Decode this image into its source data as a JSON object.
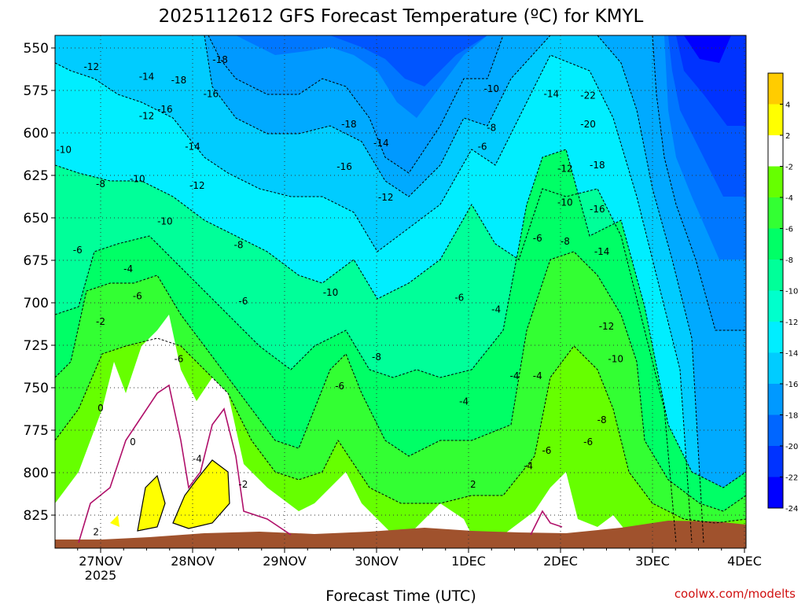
{
  "chart_data": {
    "type": "time-height contour",
    "title": "2025112612 GFS Forecast Temperature (ºC) for KMYL",
    "xlabel": "Forecast Time (UTC)",
    "ylabel": "Pressure (hPa)",
    "credit": "coolwx.com/modelts",
    "y_ticks": [
      "550",
      "575",
      "600",
      "625",
      "650",
      "675",
      "700",
      "725",
      "750",
      "775",
      "800",
      "825"
    ],
    "x_ticks": [
      "27NOV",
      "28NOV",
      "29NOV",
      "30NOV",
      "1DEC",
      "2DEC",
      "3DEC",
      "4DEC"
    ],
    "x_sublabel": "2025",
    "colorbar": {
      "labels": [
        "4",
        "2",
        "-2",
        "-4",
        "-6",
        "-8",
        "-10",
        "-12",
        "-14",
        "-16",
        "-18",
        "-20",
        "-22",
        "-24"
      ],
      "colors": [
        "#0000ff",
        "#0033ff",
        "#0066ff",
        "#0099ff",
        "#00ccff",
        "#00eeff",
        "#00ffcc",
        "#00ff99",
        "#00ff66",
        "#33ff33",
        "#66ff00",
        "#ffffff",
        "#ffff00",
        "#ffcc00"
      ]
    },
    "temperature_profiles": [
      {
        "time": "27NOV",
        "values_by_pressure": {
          "550": -12,
          "600": -10,
          "650": -6,
          "700": -3,
          "750": 0,
          "800": 1,
          "825": 2
        }
      },
      {
        "time": "28NOV",
        "values_by_pressure": {
          "550": -14,
          "600": -11,
          "650": -8,
          "700": -5,
          "750": -1,
          "800": 2,
          "825": 3
        }
      },
      {
        "time": "29NOV",
        "values_by_pressure": {
          "550": -17,
          "600": -14,
          "650": -10,
          "700": -7,
          "750": -5,
          "800": -3,
          "825": -1
        }
      },
      {
        "time": "30NOV",
        "values_by_pressure": {
          "550": -18,
          "600": -16,
          "650": -11,
          "700": -9,
          "750": -7,
          "800": -5,
          "825": -2
        }
      },
      {
        "time": "1DEC",
        "values_by_pressure": {
          "550": -16,
          "600": -13,
          "650": -10,
          "700": -7,
          "750": -5,
          "800": -3,
          "825": 0
        }
      },
      {
        "time": "2DEC",
        "values_by_pressure": {
          "550": -10,
          "600": -8,
          "650": -6,
          "700": -4,
          "750": -3,
          "800": -1,
          "825": 1
        }
      },
      {
        "time": "3DEC",
        "values_by_pressure": {
          "550": -22,
          "600": -19,
          "650": -14,
          "700": -11,
          "750": -7,
          "800": -5,
          "825": -3
        }
      },
      {
        "time": "4DEC",
        "values_by_pressure": {
          "550": -24,
          "600": -20,
          "650": -15,
          "700": -11,
          "750": -7,
          "800": -4,
          "825": -2
        }
      }
    ],
    "contour_labels": [
      {
        "text": "-12",
        "time": 26.9,
        "p": 561
      },
      {
        "text": "-14",
        "time": 27.5,
        "p": 567
      },
      {
        "text": "-16",
        "time": 27.7,
        "p": 586
      },
      {
        "text": "-18",
        "time": 27.85,
        "p": 569
      },
      {
        "text": "-18",
        "time": 28.3,
        "p": 557
      },
      {
        "text": "-16",
        "time": 28.2,
        "p": 577
      },
      {
        "text": "-12",
        "time": 27.5,
        "p": 590
      },
      {
        "text": "-10",
        "time": 26.6,
        "p": 610
      },
      {
        "text": "-8",
        "time": 27.0,
        "p": 630
      },
      {
        "text": "-10",
        "time": 27.4,
        "p": 627
      },
      {
        "text": "-14",
        "time": 28.0,
        "p": 608
      },
      {
        "text": "-12",
        "time": 28.05,
        "p": 631
      },
      {
        "text": "-10",
        "time": 27.7,
        "p": 652
      },
      {
        "text": "-8",
        "time": 28.5,
        "p": 666
      },
      {
        "text": "-6",
        "time": 26.75,
        "p": 669
      },
      {
        "text": "-4",
        "time": 26.45,
        "p": 683
      },
      {
        "text": "-4",
        "time": 27.3,
        "p": 680
      },
      {
        "text": "-6",
        "time": 27.4,
        "p": 696
      },
      {
        "text": "-6",
        "time": 28.55,
        "p": 699
      },
      {
        "text": "-6",
        "time": 27.85,
        "p": 733
      },
      {
        "text": "-4",
        "time": 28.05,
        "p": 792
      },
      {
        "text": "-2",
        "time": 27.0,
        "p": 711
      },
      {
        "text": "0",
        "time": 27.0,
        "p": 762
      },
      {
        "text": "0",
        "time": 27.35,
        "p": 782
      },
      {
        "text": "-2",
        "time": 28.55,
        "p": 807
      },
      {
        "text": "2",
        "time": 26.95,
        "p": 835
      },
      {
        "text": "-18",
        "time": 29.7,
        "p": 595
      },
      {
        "text": "-16",
        "time": 29.65,
        "p": 620
      },
      {
        "text": "-14",
        "time": 30.05,
        "p": 606
      },
      {
        "text": "-12",
        "time": 30.1,
        "p": 638
      },
      {
        "text": "-10",
        "time": 29.5,
        "p": 694
      },
      {
        "text": "-8",
        "time": 30.0,
        "p": 732
      },
      {
        "text": "-6",
        "time": 29.6,
        "p": 749
      },
      {
        "text": "-10",
        "time": 31.25,
        "p": 574
      },
      {
        "text": "-8",
        "time": 31.25,
        "p": 597
      },
      {
        "text": "-6",
        "time": 31.15,
        "p": 608
      },
      {
        "text": "-14",
        "time": 31.9,
        "p": 577
      },
      {
        "text": "-12",
        "time": 32.05,
        "p": 621
      },
      {
        "text": "-10",
        "time": 32.05,
        "p": 641
      },
      {
        "text": "-8",
        "time": 32.05,
        "p": 664
      },
      {
        "text": "-6",
        "time": 31.75,
        "p": 662
      },
      {
        "text": "-6",
        "time": 30.9,
        "p": 697
      },
      {
        "text": "-4",
        "time": 31.3,
        "p": 704
      },
      {
        "text": "-4",
        "time": 31.5,
        "p": 743
      },
      {
        "text": "-4",
        "time": 31.75,
        "p": 743
      },
      {
        "text": "-4",
        "time": 30.95,
        "p": 758
      },
      {
        "text": "-4",
        "time": 31.65,
        "p": 796
      },
      {
        "text": "-6",
        "time": 31.85,
        "p": 787
      },
      {
        "text": "2",
        "time": 31.05,
        "p": 807
      },
      {
        "text": "-22",
        "time": 32.3,
        "p": 578
      },
      {
        "text": "-20",
        "time": 32.3,
        "p": 595
      },
      {
        "text": "-18",
        "time": 32.4,
        "p": 619
      },
      {
        "text": "-16",
        "time": 32.4,
        "p": 645
      },
      {
        "text": "-14",
        "time": 32.45,
        "p": 670
      },
      {
        "text": "-12",
        "time": 32.5,
        "p": 714
      },
      {
        "text": "-10",
        "time": 32.6,
        "p": 733
      },
      {
        "text": "-8",
        "time": 32.45,
        "p": 769
      },
      {
        "text": "-6",
        "time": 32.3,
        "p": 782
      }
    ]
  }
}
